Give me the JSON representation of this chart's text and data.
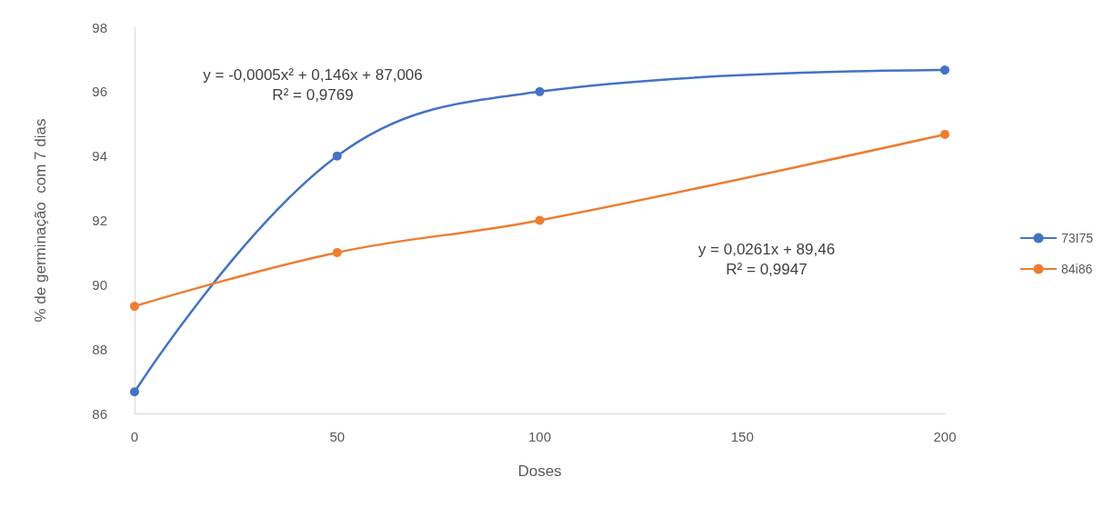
{
  "chart_data": {
    "type": "line",
    "xlabel": "Doses",
    "ylabel": "% de germinação  com 7 dias",
    "x": [
      0,
      50,
      100,
      200
    ],
    "series": [
      {
        "name": "73I75",
        "color": "#4472c4",
        "values": [
          86.67,
          94,
          96,
          96.67
        ]
      },
      {
        "name": "84i86",
        "color": "#ed7d31",
        "values": [
          89.33,
          91,
          92,
          94.67
        ]
      }
    ],
    "xlim": [
      0,
      200
    ],
    "xticks": [
      0,
      50,
      100,
      150,
      200
    ],
    "ylim": [
      86,
      98
    ],
    "yticks": [
      86,
      88,
      90,
      92,
      94,
      96,
      98
    ],
    "annotations": [
      "y = -0,0005x² + 0,146x + 87,006\nR² = 0,9769",
      "y = 0,0261x + 89,46\nR² = 0,9947"
    ],
    "grid": false,
    "legend": "right",
    "marker": "circle",
    "line_style": "solid"
  }
}
